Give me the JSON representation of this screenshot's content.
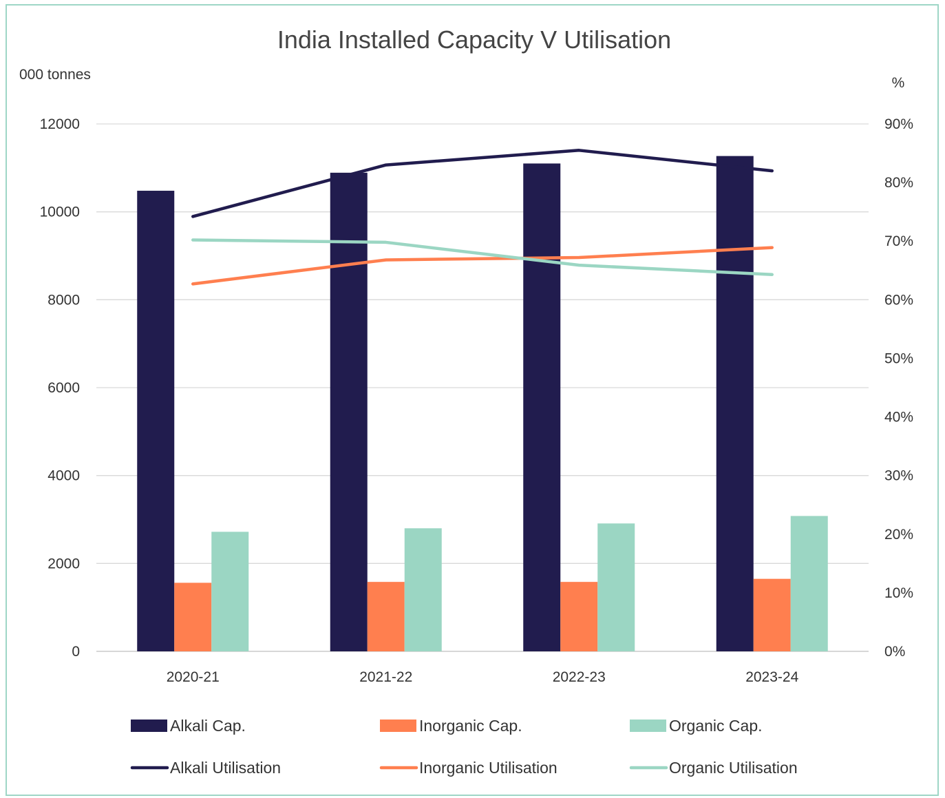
{
  "chart_data": {
    "type": "bar",
    "title": "India Installed Capacity V Utilisation",
    "ylabel_left": "000 tonnes",
    "ylabel_right": "%",
    "categories": [
      "2020-21",
      "2021-22",
      "2022-23",
      "2023-24"
    ],
    "ylim_left": [
      0,
      12000
    ],
    "yticks_left": [
      "0",
      "2000",
      "4000",
      "6000",
      "8000",
      "10000",
      "12000"
    ],
    "ylim_right": [
      0,
      0.9
    ],
    "yticks_right": [
      "0%",
      "10%",
      "20%",
      "30%",
      "40%",
      "50%",
      "60%",
      "70%",
      "80%",
      "90%"
    ],
    "grid": true,
    "legend_position": "bottom",
    "bar_series": [
      {
        "name": "Alkali Cap.",
        "color": "#211c4e",
        "values": [
          10480,
          10890,
          11100,
          11270
        ]
      },
      {
        "name": "Inorganic Cap.",
        "color": "#ff7f4f",
        "values": [
          1560,
          1580,
          1580,
          1650
        ]
      },
      {
        "name": "Organic Cap.",
        "color": "#9bd6c3",
        "values": [
          2720,
          2800,
          2910,
          3080
        ]
      }
    ],
    "line_series": [
      {
        "name": "Alkali Utilisation",
        "color": "#211c4e",
        "values": [
          0.742,
          0.83,
          0.855,
          0.82
        ]
      },
      {
        "name": "Inorganic Utilisation",
        "color": "#ff7f4f",
        "values": [
          0.627,
          0.668,
          0.672,
          0.689
        ]
      },
      {
        "name": "Organic Utilisation",
        "color": "#9bd6c3",
        "values": [
          0.702,
          0.698,
          0.659,
          0.643
        ]
      }
    ]
  }
}
